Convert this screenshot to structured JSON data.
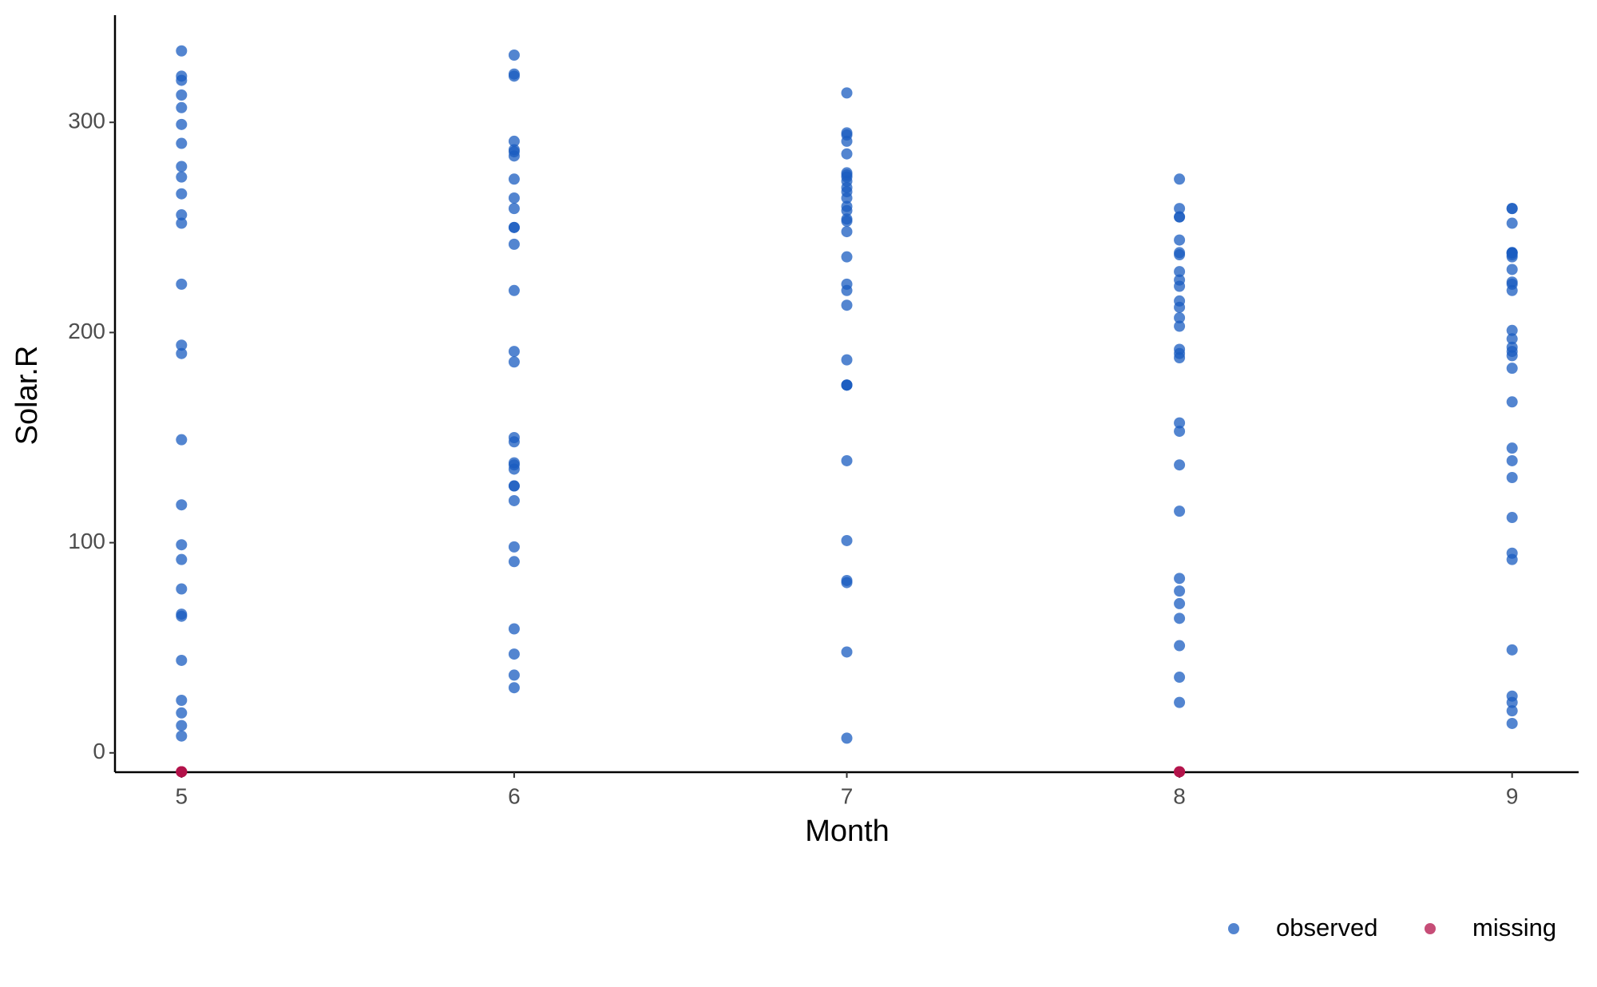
{
  "chart_data": {
    "type": "scatter",
    "xlabel": "Month",
    "ylabel": "Solar.R",
    "xlim": [
      4.8,
      9.2
    ],
    "ylim": [
      -9.2,
      351
    ],
    "xticks": [
      5,
      6,
      7,
      8,
      9
    ],
    "yticks": [
      0,
      100,
      200,
      300
    ],
    "grid": false,
    "legend": "bottom-right",
    "series": [
      {
        "name": "observed",
        "color": "#1a5cc0",
        "x": [
          5,
          5,
          5,
          5,
          5,
          5,
          5,
          5,
          5,
          5,
          5,
          5,
          5,
          5,
          5,
          5,
          5,
          5,
          5,
          5,
          5,
          5,
          5,
          5,
          5,
          5,
          5,
          6,
          6,
          6,
          6,
          6,
          6,
          6,
          6,
          6,
          6,
          6,
          6,
          6,
          6,
          6,
          6,
          6,
          6,
          6,
          6,
          6,
          6,
          6,
          6,
          6,
          6,
          6,
          6,
          6,
          6,
          7,
          7,
          7,
          7,
          7,
          7,
          7,
          7,
          7,
          7,
          7,
          7,
          7,
          7,
          7,
          7,
          7,
          7,
          7,
          7,
          7,
          7,
          7,
          7,
          7,
          7,
          7,
          7,
          7,
          7,
          7,
          8,
          8,
          8,
          8,
          8,
          8,
          8,
          8,
          8,
          8,
          8,
          8,
          8,
          8,
          8,
          8,
          8,
          8,
          8,
          8,
          8,
          8,
          8,
          8,
          8,
          8,
          8,
          8,
          9,
          9,
          9,
          9,
          9,
          9,
          9,
          9,
          9,
          9,
          9,
          9,
          9,
          9,
          9,
          9,
          9,
          9,
          9,
          9,
          9,
          9,
          9,
          9,
          9,
          9,
          9,
          9,
          9,
          9
        ],
        "y": [
          190,
          118,
          149,
          313,
          299,
          99,
          19,
          194,
          256,
          290,
          274,
          65,
          334,
          307,
          78,
          322,
          44,
          8,
          320,
          25,
          92,
          66,
          266,
          13,
          252,
          223,
          279,
          286,
          287,
          242,
          186,
          220,
          264,
          127,
          273,
          291,
          323,
          259,
          250,
          148,
          332,
          322,
          191,
          284,
          37,
          120,
          137,
          150,
          59,
          91,
          250,
          135,
          127,
          47,
          98,
          31,
          138,
          269,
          248,
          236,
          101,
          175,
          314,
          276,
          267,
          272,
          175,
          139,
          264,
          175,
          291,
          48,
          260,
          274,
          285,
          187,
          220,
          7,
          258,
          295,
          294,
          223,
          81,
          82,
          213,
          275,
          253,
          254,
          83,
          24,
          77,
          255,
          229,
          207,
          222,
          137,
          192,
          273,
          157,
          64,
          71,
          51,
          115,
          244,
          190,
          259,
          36,
          255,
          212,
          238,
          215,
          153,
          203,
          225,
          237,
          188,
          167,
          197,
          183,
          189,
          95,
          92,
          252,
          220,
          230,
          259,
          236,
          259,
          238,
          24,
          112,
          237,
          224,
          27,
          238,
          201,
          238,
          14,
          139,
          49,
          20,
          193,
          145,
          191,
          131,
          223
        ]
      },
      {
        "name": "missing",
        "color": "#b3124a",
        "x": [
          5,
          5,
          5,
          5,
          8,
          8,
          8
        ],
        "y": [
          -9,
          -9,
          -9,
          -9,
          -9,
          -9,
          -9
        ]
      }
    ]
  }
}
